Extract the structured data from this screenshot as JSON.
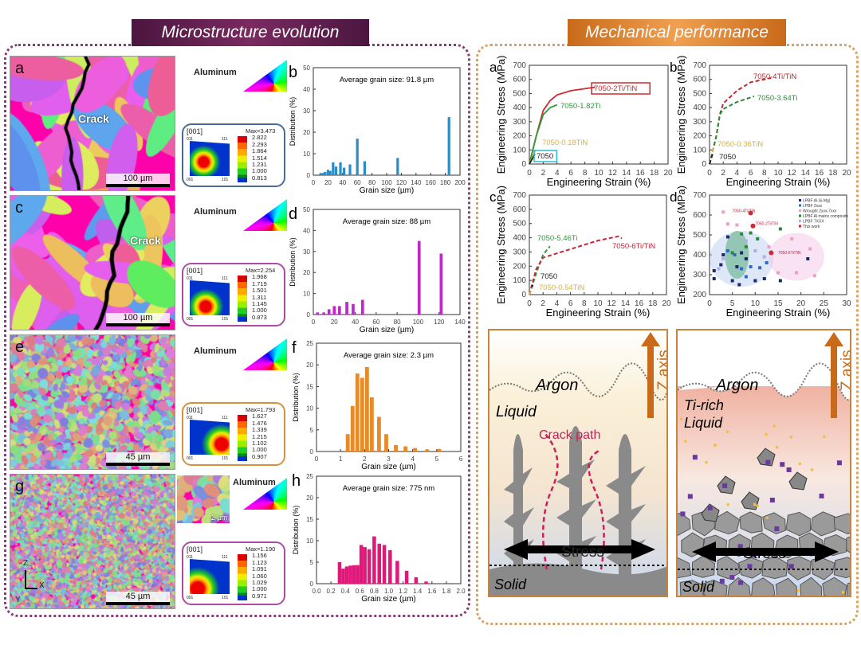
{
  "left": {
    "title": "Microstructure evolution",
    "color": "#6b1e55",
    "rows": [
      {
        "letter": "a",
        "crack": "Crack",
        "scale": "100 µm",
        "alu": "Aluminum",
        "tex_color": "#4a6a9a",
        "tex_head": "[001]",
        "max": "Max=3.473",
        "levels": [
          "2.822",
          "2.293",
          "1.864",
          "1.514",
          "1.231",
          "1.000",
          "0.813"
        ]
      },
      {
        "letter": "c",
        "crack": "Crack",
        "scale": "100 µm",
        "alu": "Aluminum",
        "tex_color": "#b04aa0",
        "tex_head": "[001]",
        "max": "Max=2.254",
        "levels": [
          "1.968",
          "1.719",
          "1.501",
          "1.311",
          "1.145",
          "1.000",
          "0.873"
        ]
      },
      {
        "letter": "e",
        "scale": "45 µm",
        "alu": "Aluminum",
        "tex_color": "#d9903c",
        "tex_head": "[001]",
        "max": "Max=1.793",
        "levels": [
          "1.627",
          "1.476",
          "1.339",
          "1.215",
          "1.102",
          "1.000",
          "0.907"
        ]
      },
      {
        "letter": "g",
        "scale": "45 µm",
        "inset_scale": "2 µm",
        "alu": "Aluminum",
        "tex_color": "#b04aa0",
        "tex_head": "[001]",
        "max": "Max=1.190",
        "levels": [
          "1.156",
          "1.123",
          "1.091",
          "1.060",
          "1.029",
          "1.000",
          "0.971"
        ]
      }
    ],
    "axes_labels": {
      "z": "Z",
      "x": "X",
      "y": "Y"
    },
    "pf_corners": [
      "011",
      "111",
      "001",
      "101"
    ]
  },
  "right": {
    "title": "Mechanical performance",
    "color": "#d9822b",
    "schematic_left": {
      "argon": "Argon",
      "liquid": "Liquid",
      "crack": "Crack path",
      "stress": "Stress",
      "solid": "Solid",
      "axis": "Z axis"
    },
    "schematic_right": {
      "argon": "Argon",
      "liquid1": "Ti-rich",
      "liquid2": "Liquid",
      "stress": "Stress",
      "solid": "Solid",
      "axis": "Z axis"
    }
  },
  "chart_data": [
    {
      "id": "b",
      "type": "bar",
      "letter": "b",
      "title": "Average grain size: 91.8 µm",
      "xlabel": "Grain size (µm)",
      "ylabel": "Distribution (%)",
      "xlim": [
        0,
        200
      ],
      "ylim": [
        0,
        50
      ],
      "xticks": [
        0,
        20,
        40,
        60,
        80,
        100,
        120,
        140,
        160,
        180,
        200
      ],
      "yticks": [
        0,
        10,
        20,
        30,
        40,
        50
      ],
      "color": "#2a8cc8",
      "barwidth": 3.5,
      "x": [
        10,
        13,
        16,
        20,
        23,
        27,
        31,
        37,
        42,
        50,
        60,
        70,
        115,
        185
      ],
      "values": [
        1,
        1,
        1.5,
        2.5,
        2,
        6,
        4,
        6,
        3.5,
        5,
        17,
        6.5,
        8,
        27
      ]
    },
    {
      "id": "d",
      "type": "bar",
      "letter": "d",
      "title": "Average grain size: 88 µm",
      "xlabel": "Grain size (µm)",
      "ylabel": "Distribution (%)",
      "xlim": [
        0,
        140
      ],
      "ylim": [
        0,
        50
      ],
      "xticks": [
        0,
        20,
        40,
        60,
        80,
        100,
        120,
        140
      ],
      "yticks": [
        0,
        10,
        20,
        30,
        40,
        50
      ],
      "color": "#c026c8",
      "barwidth": 2.8,
      "x": [
        4,
        10,
        15,
        20,
        25,
        32,
        38,
        47,
        101,
        122
      ],
      "values": [
        1,
        1,
        2.5,
        4,
        4,
        6,
        5,
        7,
        35,
        29
      ]
    },
    {
      "id": "f",
      "type": "bar",
      "letter": "f",
      "title": "Average grain size: 2.3 µm",
      "xlabel": "Grain size (µm)",
      "ylabel": "Distribution (%)",
      "xlim": [
        0,
        6
      ],
      "ylim": [
        0,
        25
      ],
      "xticks": [
        0,
        1,
        2,
        3,
        4,
        5,
        6
      ],
      "yticks": [
        0,
        5,
        10,
        15,
        20,
        25
      ],
      "color": "#e88a2a",
      "barwidth": 0.16,
      "x": [
        1.3,
        1.5,
        1.7,
        1.9,
        2.1,
        2.3,
        2.6,
        2.9,
        3.3,
        3.7,
        4.1,
        4.6,
        5.1
      ],
      "values": [
        4,
        10.5,
        18,
        17,
        19.5,
        12.5,
        8,
        4,
        1.5,
        1.2,
        0.8,
        0.5,
        0.6
      ]
    },
    {
      "id": "h",
      "type": "bar",
      "letter": "h",
      "title": "Average grain size: 775 nm",
      "xlabel": "Grain size (µm)",
      "ylabel": "Distribution (%)",
      "xlim": [
        0,
        2
      ],
      "ylim": [
        0,
        25
      ],
      "xticks": [
        "0.0",
        "0.2",
        "0.4",
        "0.6",
        "0.8",
        "1.0",
        "1.2",
        "1.4",
        "1.6",
        "1.8",
        "2.0"
      ],
      "yticks": [
        0,
        5,
        10,
        15,
        20,
        25
      ],
      "color": "#e0187a",
      "barwidth": 0.05,
      "x": [
        0.32,
        0.37,
        0.42,
        0.47,
        0.52,
        0.57,
        0.62,
        0.67,
        0.73,
        0.8,
        0.87,
        0.94,
        1.02,
        1.12,
        1.25,
        1.38,
        1.52
      ],
      "values": [
        5,
        3.5,
        4,
        4.2,
        4.3,
        4.3,
        9,
        8.5,
        8,
        11,
        9.3,
        9,
        7.8,
        5.3,
        3,
        1.5,
        0.5
      ]
    },
    {
      "id": "sa",
      "type": "line",
      "letter": "a",
      "xlabel": "Engineering Strain (%)",
      "ylabel": "Engineering Stress (MPa)",
      "xlim": [
        0,
        20
      ],
      "ylim": [
        0,
        700
      ],
      "xticks": [
        0,
        2,
        4,
        6,
        8,
        10,
        12,
        14,
        16,
        18,
        20
      ],
      "yticks": [
        0,
        100,
        200,
        300,
        400,
        500,
        600,
        700
      ],
      "series": [
        {
          "name": "7050-2Ti/TiN",
          "color": "#d02a30",
          "dash": false,
          "boxed": true,
          "points": [
            [
              0,
              0
            ],
            [
              1,
              200
            ],
            [
              2,
              380
            ],
            [
              3,
              450
            ],
            [
              4,
              490
            ],
            [
              6,
              520
            ],
            [
              9.5,
              545
            ]
          ]
        },
        {
          "name": "7050-1.82Ti",
          "color": "#2e9a3a",
          "dash": false,
          "points": [
            [
              0,
              0
            ],
            [
              1,
              200
            ],
            [
              2,
              350
            ],
            [
              3,
              400
            ],
            [
              4,
              420
            ]
          ]
        },
        {
          "name": "7050-0.18TiN",
          "color": "#d8b040",
          "dash": false,
          "points": [
            [
              0,
              0
            ],
            [
              0.9,
              100
            ]
          ]
        },
        {
          "name": "7050",
          "color": "#222",
          "dash": false,
          "boxed": true,
          "boxcolor": "#2ab8d8",
          "points": [
            [
              0,
              0
            ],
            [
              0.8,
              70
            ]
          ]
        }
      ]
    },
    {
      "id": "sb",
      "type": "line",
      "letter": "b",
      "xlabel": "Engineering Strain (%)",
      "ylabel": "Engineering Stress (MPa)",
      "xlim": [
        0,
        20
      ],
      "ylim": [
        0,
        700
      ],
      "xticks": [
        0,
        2,
        4,
        6,
        8,
        10,
        12,
        14,
        16,
        18,
        20
      ],
      "yticks": [
        0,
        100,
        200,
        300,
        400,
        500,
        600,
        700
      ],
      "series": [
        {
          "name": "7050-4Ti/TiN",
          "color": "#c0282e",
          "dash": true,
          "points": [
            [
              0,
              0
            ],
            [
              1,
              200
            ],
            [
              1.5,
              350
            ],
            [
              2,
              430
            ],
            [
              4,
              520
            ],
            [
              6,
              580
            ],
            [
              9,
              610
            ]
          ]
        },
        {
          "name": "7050-3.64Ti",
          "color": "#2e8a3a",
          "dash": true,
          "points": [
            [
              0,
              0
            ],
            [
              1,
              200
            ],
            [
              1.5,
              350
            ],
            [
              2,
              390
            ],
            [
              4,
              440
            ],
            [
              6.5,
              480
            ]
          ]
        },
        {
          "name": "7050-0.36TiN",
          "color": "#d8b040",
          "dash": true,
          "points": [
            [
              0,
              0
            ],
            [
              0.6,
              120
            ]
          ]
        },
        {
          "name": "7050",
          "color": "#222",
          "dash": true,
          "points": [
            [
              0,
              0
            ],
            [
              0.5,
              80
            ]
          ]
        }
      ]
    },
    {
      "id": "sc",
      "type": "line",
      "letter": "c",
      "xlabel": "Engineering Strain (%)",
      "ylabel": "Engineering Stress (MPa)",
      "xlim": [
        0,
        20
      ],
      "ylim": [
        0,
        700
      ],
      "xticks": [
        0,
        2,
        4,
        6,
        8,
        10,
        12,
        14,
        16,
        18,
        20
      ],
      "yticks": [
        0,
        100,
        200,
        300,
        400,
        500,
        600,
        700
      ],
      "series": [
        {
          "name": "7050-5.46Ti",
          "color": "#2e9a3a",
          "dash": true,
          "points": [
            [
              0,
              0
            ],
            [
              1,
              150
            ],
            [
              2,
              280
            ],
            [
              3,
              340
            ]
          ]
        },
        {
          "name": "7050-6Ti/TiN",
          "color": "#c0283e",
          "dash": true,
          "points": [
            [
              0,
              0
            ],
            [
              1,
              180
            ],
            [
              2,
              260
            ],
            [
              4,
              290
            ],
            [
              6,
              320
            ],
            [
              10,
              380
            ],
            [
              13,
              410
            ],
            [
              13.5,
              395
            ]
          ]
        },
        {
          "name": "7050",
          "color": "#222",
          "dash": true,
          "points": [
            [
              0,
              0
            ],
            [
              0.5,
              70
            ]
          ]
        },
        {
          "name": "7050-0.54TiN",
          "color": "#d8b040",
          "dash": true,
          "points": [
            [
              0,
              0
            ],
            [
              0.4,
              50
            ]
          ]
        }
      ]
    },
    {
      "id": "sd",
      "type": "scatter",
      "letter": "d",
      "xlabel": "Engineering Strain (%)",
      "ylabel": "Engineering Stress (MPa)",
      "xlim": [
        0,
        30
      ],
      "ylim": [
        200,
        700
      ],
      "xticks": [
        0,
        5,
        10,
        15,
        20,
        25,
        30
      ],
      "yticks": [
        200,
        300,
        400,
        500,
        600,
        700
      ],
      "legend": "top-right",
      "series": [
        {
          "name": "LPBF Al-Si-Mg)",
          "color": "#1a2a6a",
          "points": [
            [
              1,
              280
            ],
            [
              1,
              320
            ],
            [
              2.5,
              350
            ],
            [
              3,
              400
            ],
            [
              4,
              490
            ],
            [
              5,
              270
            ],
            [
              6,
              340
            ],
            [
              6.5,
              250
            ],
            [
              7,
              410
            ],
            [
              8,
              380
            ],
            [
              10,
              270
            ],
            [
              12,
              280
            ],
            [
              15.5,
              270
            ],
            [
              21.5,
              380
            ]
          ]
        },
        {
          "name": "LPBF 2xxx",
          "color": "#2a6ac8",
          "points": [
            [
              4,
              420
            ],
            [
              5.5,
              400
            ],
            [
              7,
              330
            ],
            [
              8,
              290
            ],
            [
              9,
              340
            ],
            [
              11,
              335
            ],
            [
              12.5,
              360
            ]
          ]
        },
        {
          "name": "Wrought 2xxx-7xxx",
          "color": "#e8a0c8",
          "points": [
            [
              3,
              615
            ],
            [
              4,
              555
            ],
            [
              6,
              550
            ],
            [
              13,
              440
            ],
            [
              15,
              310
            ],
            [
              18,
              480
            ],
            [
              19,
              310
            ],
            [
              22,
              430
            ],
            [
              23,
              295
            ]
          ]
        },
        {
          "name": "LPBF Al matrix composite",
          "color": "#2a8a3a",
          "points": [
            [
              5,
              410
            ],
            [
              7,
              505
            ],
            [
              8,
              440
            ],
            [
              9,
              510
            ],
            [
              10.5,
              480
            ],
            [
              15.5,
              530
            ]
          ]
        },
        {
          "name": "LPBF 7XXX",
          "color": "#b0b0e0",
          "points": [
            [
              2,
              330
            ],
            [
              3,
              380
            ],
            [
              8,
              470
            ],
            [
              10,
              420
            ],
            [
              12,
              390
            ]
          ]
        },
        {
          "name": "This work",
          "color": "#d02a30",
          "points": [
            [
              9,
              610
            ],
            [
              9.5,
              545
            ],
            [
              13.5,
              410
            ]
          ]
        }
      ],
      "annotations": [
        "7050-4Ti/TiN",
        "7050-2Ti/TiN",
        "7050-6Ti/TiN"
      ]
    }
  ]
}
